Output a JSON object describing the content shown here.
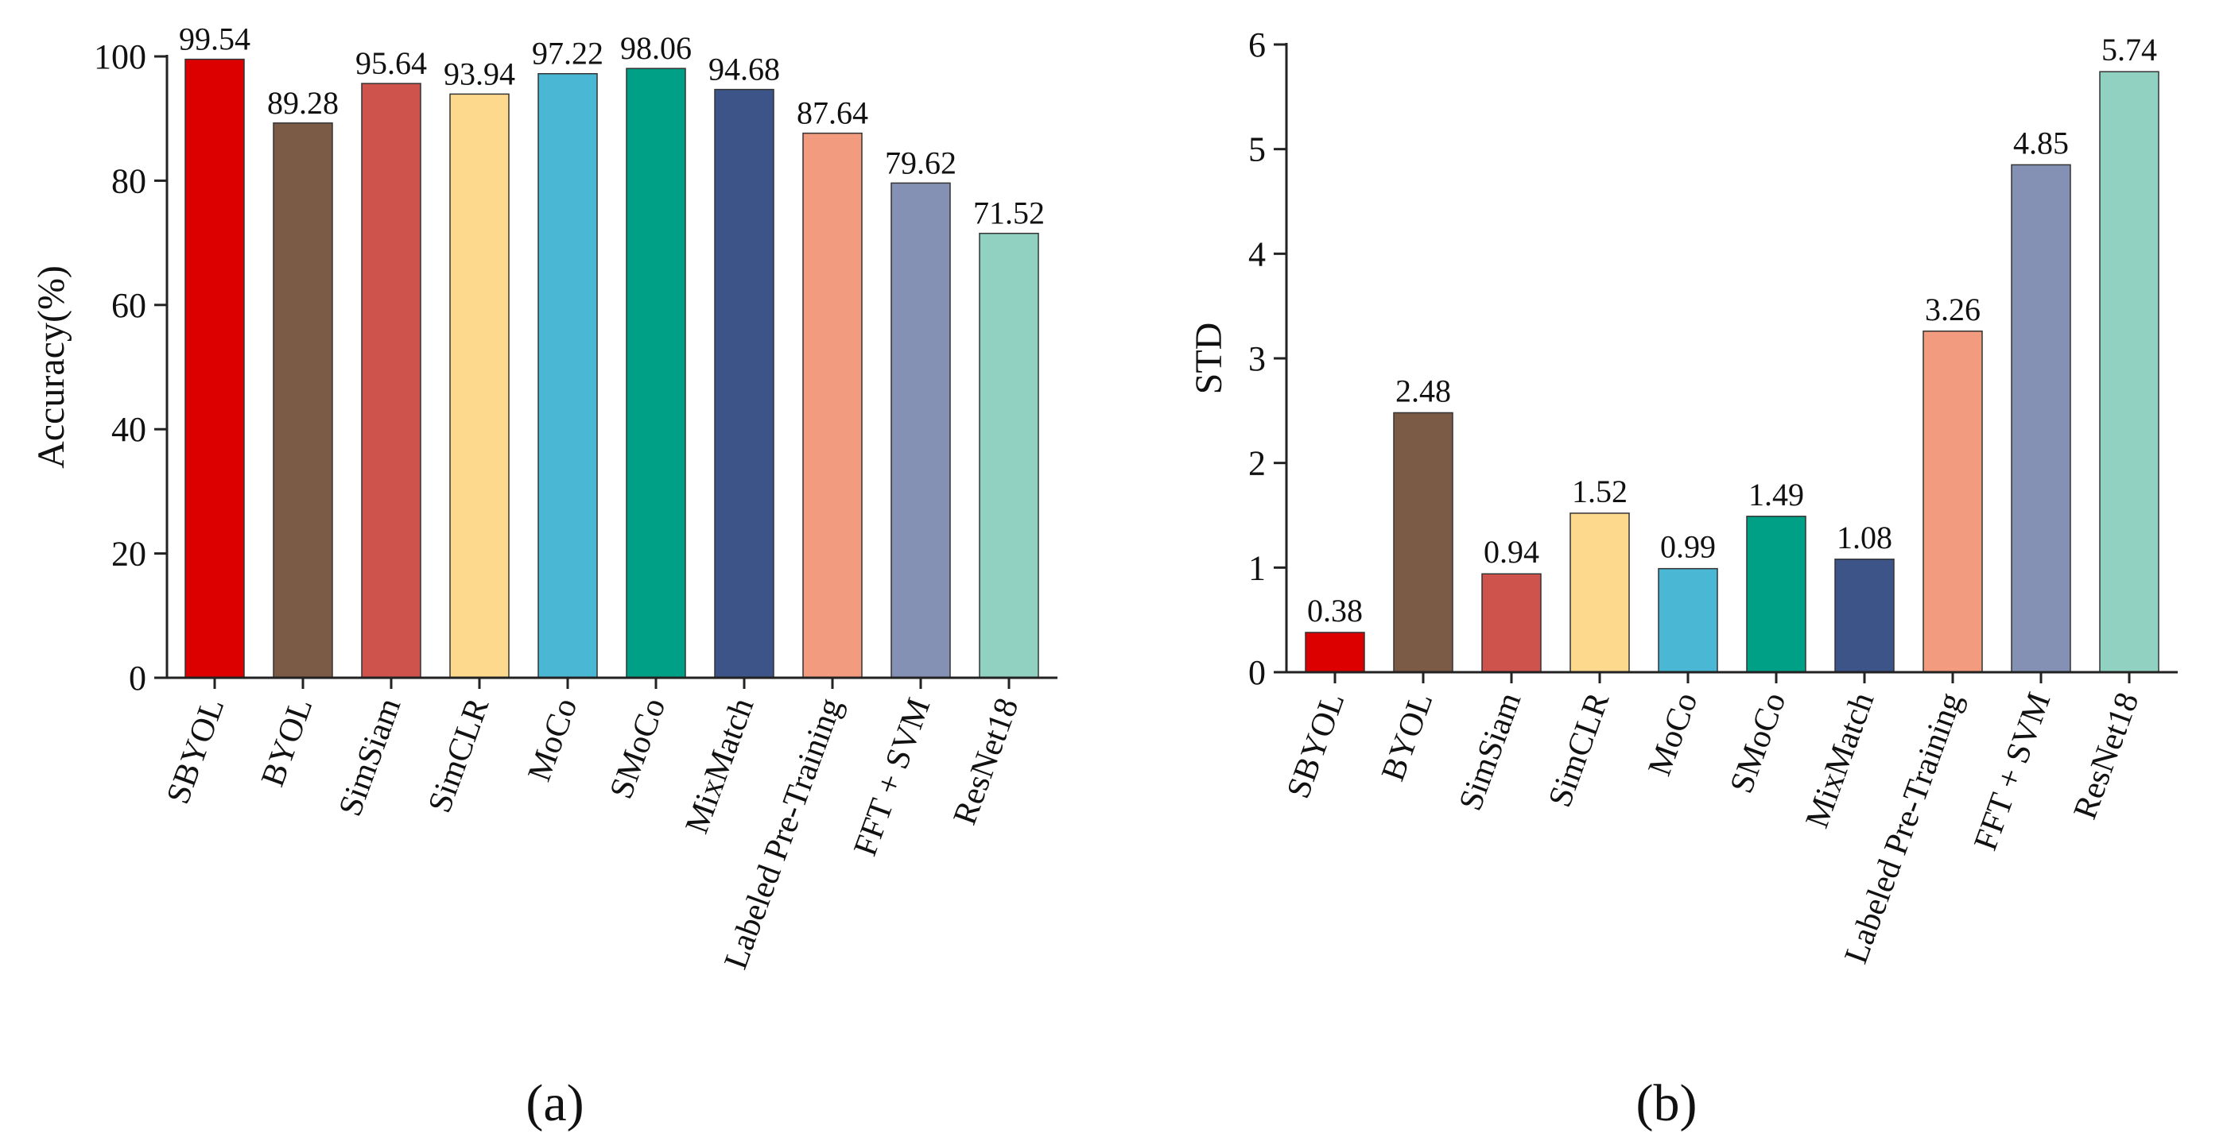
{
  "chart_data": [
    {
      "type": "bar",
      "panel_label": "(a)",
      "ylabel": "Accuracy(%)",
      "xlabel": "",
      "ylim": [
        0,
        100
      ],
      "yticks": [
        0,
        20,
        40,
        60,
        80,
        100
      ],
      "categories": [
        "SBYOL",
        "BYOL",
        "SimSiam",
        "SimCLR",
        "MoCo",
        "SMoCo",
        "MixMatch",
        "Labeled Pre-Training",
        "FFT + SVM",
        "ResNet18"
      ],
      "values": [
        99.54,
        89.28,
        95.64,
        93.94,
        97.22,
        98.06,
        94.68,
        87.64,
        79.62,
        71.52
      ],
      "value_labels": [
        "99.54",
        "89.28",
        "95.64",
        "93.94",
        "97.22",
        "98.06",
        "94.68",
        "87.64",
        "79.62",
        "71.52"
      ],
      "colors": [
        "#dd0000",
        "#7b5b46",
        "#cd534c",
        "#fdd98e",
        "#4ab8d5",
        "#00a087",
        "#3c5488",
        "#f39b7f",
        "#8491b4",
        "#91d1c2"
      ]
    },
    {
      "type": "bar",
      "panel_label": "(b)",
      "ylabel": "STD",
      "xlabel": "",
      "ylim": [
        0,
        6
      ],
      "yticks": [
        0,
        1,
        2,
        3,
        4,
        5,
        6
      ],
      "categories": [
        "SBYOL",
        "BYOL",
        "SimSiam",
        "SimCLR",
        "MoCo",
        "SMoCo",
        "MixMatch",
        "Labeled Pre-Training",
        "FFT + SVM",
        "ResNet18"
      ],
      "values": [
        0.38,
        2.48,
        0.94,
        1.52,
        0.99,
        1.49,
        1.08,
        3.26,
        4.85,
        5.74
      ],
      "value_labels": [
        "0.38",
        "2.48",
        "0.94",
        "1.52",
        "0.99",
        "1.49",
        "1.08",
        "3.26",
        "4.85",
        "5.74"
      ],
      "colors": [
        "#dd0000",
        "#7b5b46",
        "#cd534c",
        "#fdd98e",
        "#4ab8d5",
        "#00a087",
        "#3c5488",
        "#f39b7f",
        "#8491b4",
        "#91d1c2"
      ]
    }
  ]
}
